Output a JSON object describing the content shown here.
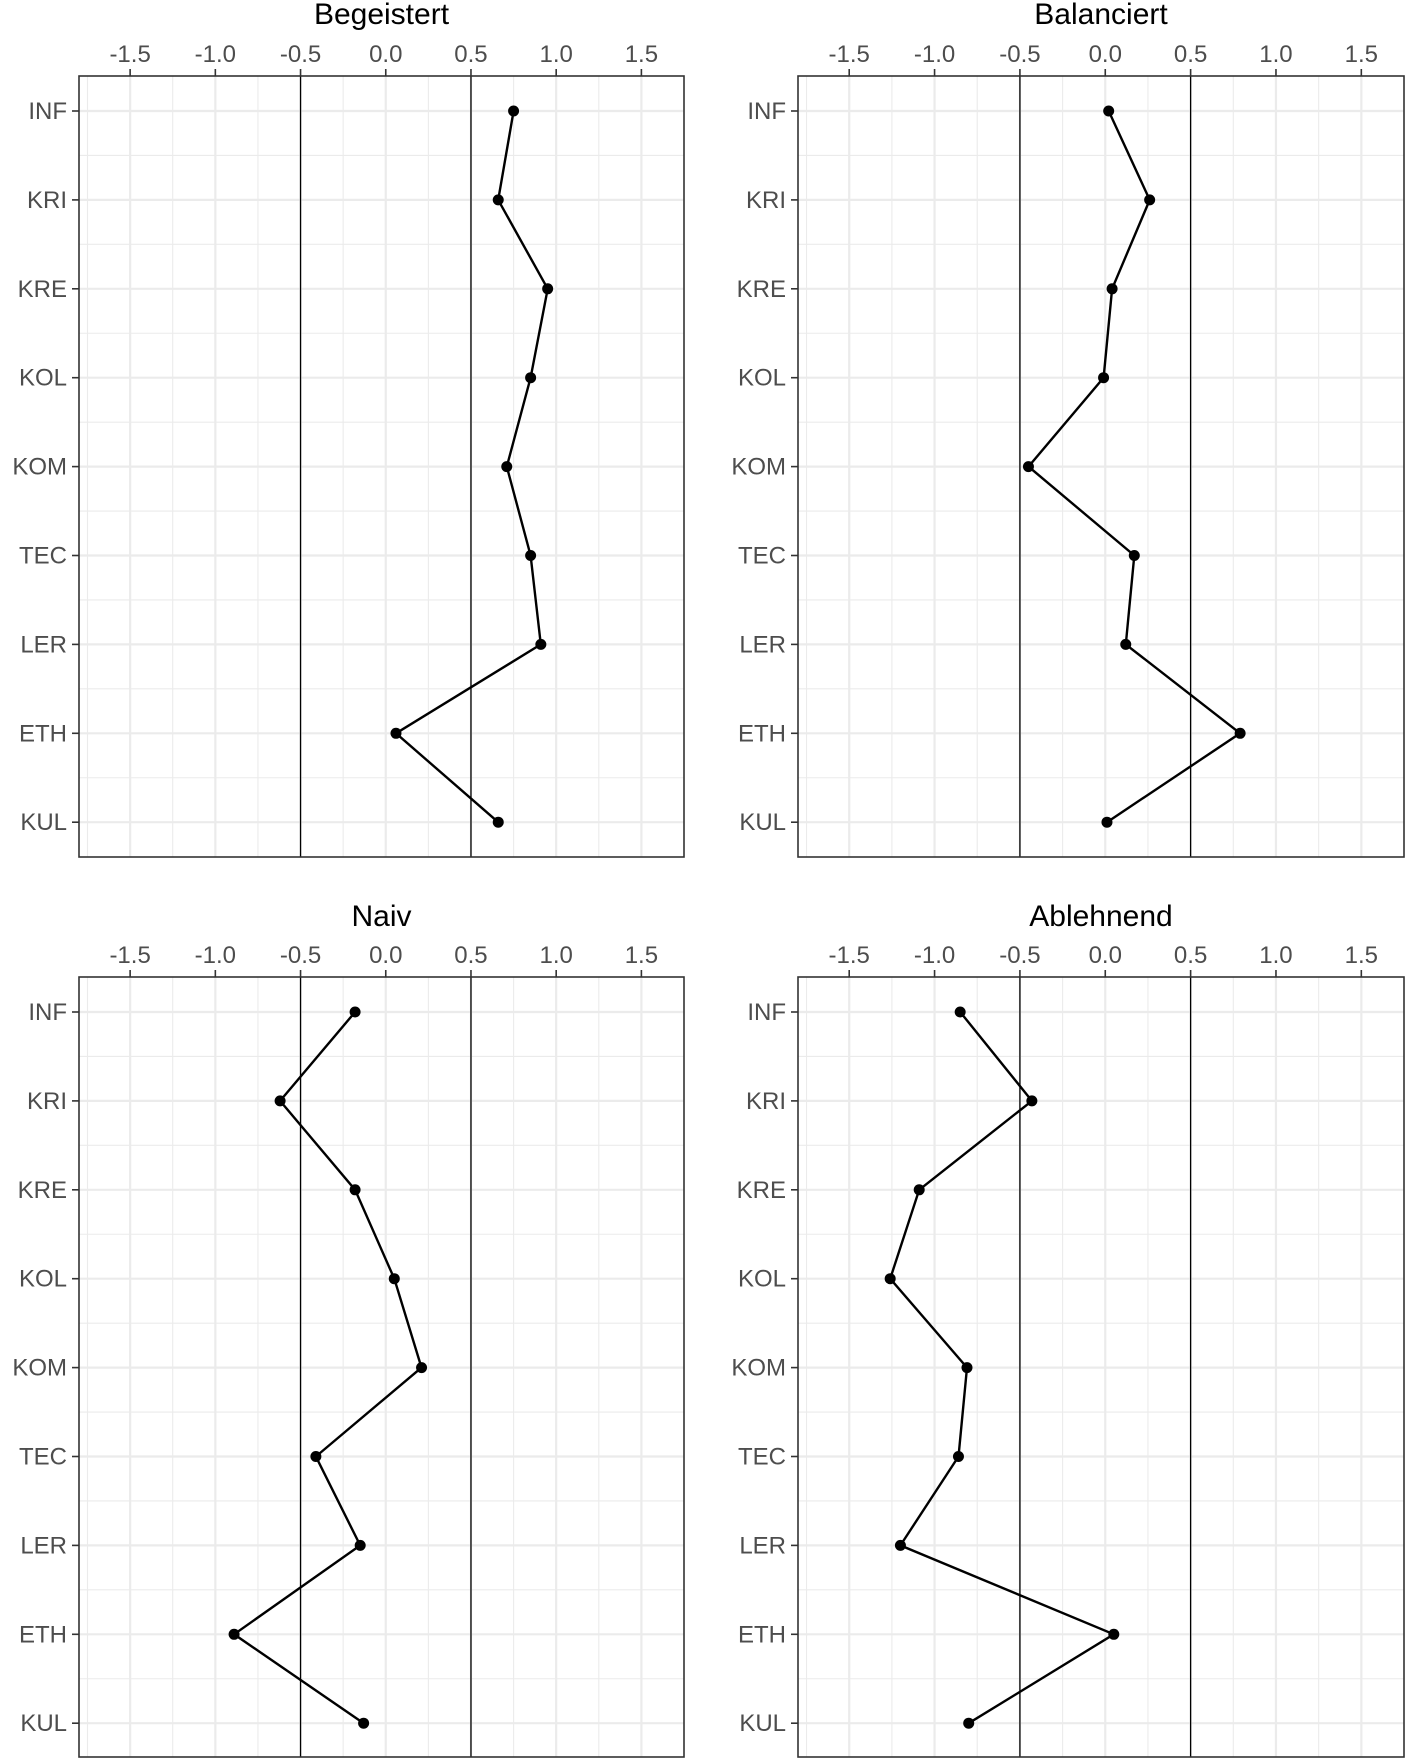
{
  "chart_data": [
    {
      "type": "line",
      "title": "Begeistert",
      "categories": [
        "INF",
        "KRI",
        "KRE",
        "KOL",
        "KOM",
        "TEC",
        "LER",
        "ETH",
        "KUL"
      ],
      "values": [
        0.75,
        0.66,
        0.95,
        0.85,
        0.71,
        0.85,
        0.91,
        0.06,
        0.66
      ],
      "xlim": [
        -1.8,
        1.75
      ],
      "xticks": [
        "-1.5",
        "-1.0",
        "-0.5",
        "0.0",
        "0.5",
        "1.0",
        "1.5"
      ],
      "reference_lines": [
        -0.5,
        0.5
      ],
      "grid": true
    },
    {
      "type": "line",
      "title": "Balanciert",
      "categories": [
        "INF",
        "KRI",
        "KRE",
        "KOL",
        "KOM",
        "TEC",
        "LER",
        "ETH",
        "KUL"
      ],
      "values": [
        0.02,
        0.26,
        0.04,
        -0.01,
        -0.45,
        0.17,
        0.12,
        0.79,
        0.01
      ],
      "xlim": [
        -1.8,
        1.75
      ],
      "xticks": [
        "-1.5",
        "-1.0",
        "-0.5",
        "0.0",
        "0.5",
        "1.0",
        "1.5"
      ],
      "reference_lines": [
        -0.5,
        0.5
      ],
      "grid": true
    },
    {
      "type": "line",
      "title": "Naiv",
      "categories": [
        "INF",
        "KRI",
        "KRE",
        "KOL",
        "KOM",
        "TEC",
        "LER",
        "ETH",
        "KUL"
      ],
      "values": [
        -0.18,
        -0.62,
        -0.18,
        0.05,
        0.21,
        -0.41,
        -0.15,
        -0.89,
        -0.13
      ],
      "xlim": [
        -1.8,
        1.75
      ],
      "xticks": [
        "-1.5",
        "-1.0",
        "-0.5",
        "0.0",
        "0.5",
        "1.0",
        "1.5"
      ],
      "reference_lines": [
        -0.5,
        0.5
      ],
      "grid": true
    },
    {
      "type": "line",
      "title": "Ablehnend",
      "categories": [
        "INF",
        "KRI",
        "KRE",
        "KOL",
        "KOM",
        "TEC",
        "LER",
        "ETH",
        "KUL"
      ],
      "values": [
        -0.85,
        -0.43,
        -1.09,
        -1.26,
        -0.81,
        -0.86,
        -1.2,
        0.05,
        -0.8
      ],
      "xlim": [
        -1.8,
        1.75
      ],
      "xticks": [
        "-1.5",
        "-1.0",
        "-0.5",
        "0.0",
        "0.5",
        "1.0",
        "1.5"
      ],
      "reference_lines": [
        -0.5,
        0.5
      ],
      "grid": true
    }
  ]
}
